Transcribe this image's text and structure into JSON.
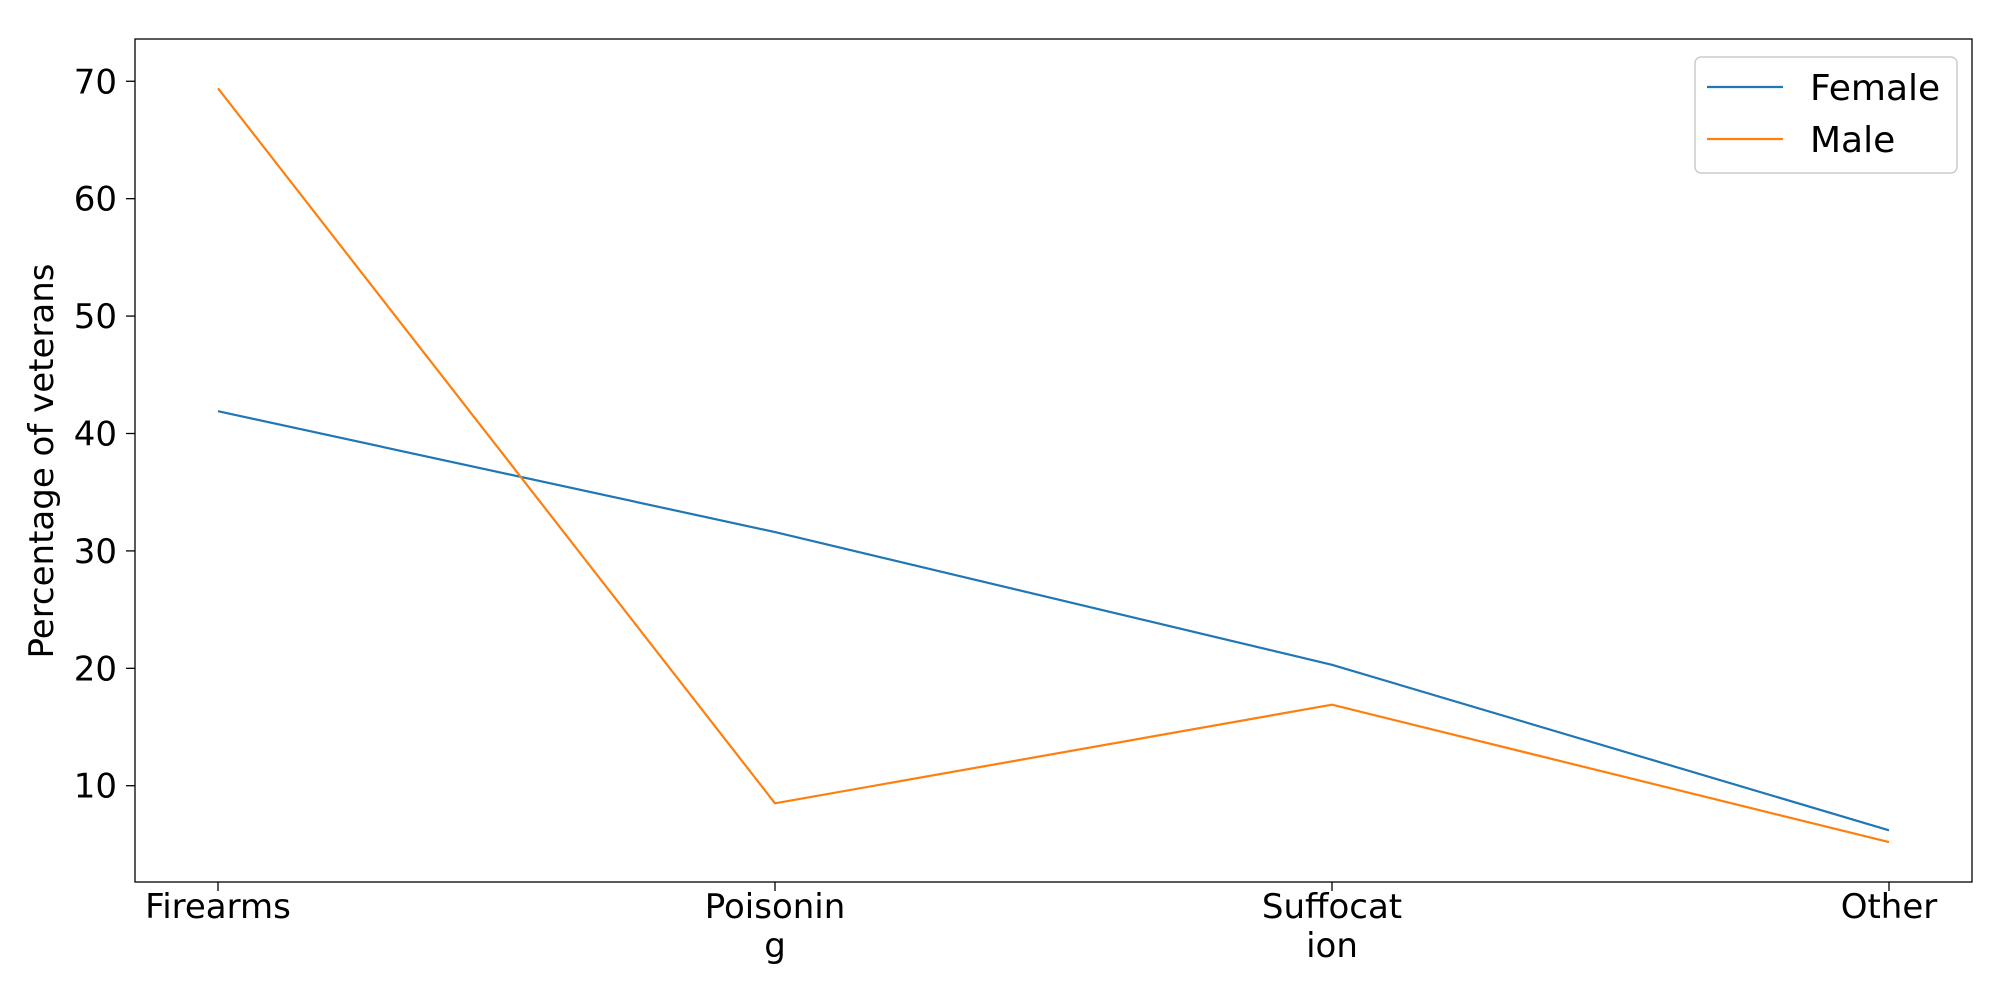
{
  "chart_data": {
    "type": "line",
    "categories": [
      [
        "Firearms"
      ],
      [
        "Poisonin",
        "g"
      ],
      [
        "Suffocat",
        "ion"
      ],
      [
        "Other"
      ]
    ],
    "series": [
      {
        "name": "Female",
        "values": [
          41.9,
          31.6,
          20.3,
          6.2
        ],
        "color": "#1f77b4"
      },
      {
        "name": "Male",
        "values": [
          69.4,
          8.5,
          16.9,
          5.2
        ],
        "color": "#ff7f0e"
      }
    ],
    "ylabel": "Percentage of veterans",
    "xlabel": "",
    "yticks": [
      10,
      20,
      30,
      40,
      50,
      60,
      70
    ],
    "ylim": [
      1.8,
      73.6
    ],
    "grid": false,
    "legend_position": "top-right"
  }
}
